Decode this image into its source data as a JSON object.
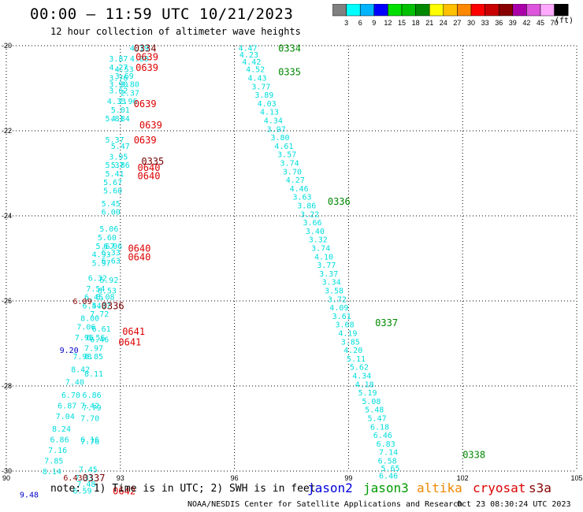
{
  "header": {
    "title": "00:00 – 11:59 UTC 10/21/2023",
    "subtitle": "12 hour collection of altimeter wave heights"
  },
  "colorbar": {
    "unit": "(ft)",
    "colors": [
      "#808080",
      "#00ffff",
      "#00b4ff",
      "#0000ff",
      "#00e000",
      "#00c000",
      "#008800",
      "#ffff00",
      "#ffc000",
      "#ff8800",
      "#ff0000",
      "#c80000",
      "#880000",
      "#aa00aa",
      "#dd55dd",
      "#ffaaff",
      "#000000"
    ],
    "labels": [
      "3",
      "6",
      "9",
      "12",
      "15",
      "18",
      "21",
      "24",
      "27",
      "30",
      "33",
      "36",
      "39",
      "42",
      "45",
      "70"
    ]
  },
  "chart_data": {
    "type": "scatter",
    "title": "12 hour collection of altimeter wave heights",
    "xlabel": "",
    "ylabel": "",
    "xlim": [
      90,
      105
    ],
    "ylim": [
      -30,
      -20
    ],
    "x_ticks": [
      "90",
      "93",
      "96",
      "99",
      "102",
      "105"
    ],
    "y_ticks": [
      "-20",
      "-22",
      "-24",
      "-26",
      "-28",
      "-30"
    ],
    "grid": true,
    "series": [
      {
        "name": "jason3",
        "color": "#00dddd",
        "points": [
          [
            96.35,
            -20.05,
            "4.47"
          ],
          [
            96.38,
            -20.2,
            "4.23"
          ],
          [
            96.45,
            -20.37,
            "4.42"
          ],
          [
            96.55,
            -20.55,
            "4.52"
          ],
          [
            96.6,
            -20.75,
            "4.43"
          ],
          [
            96.7,
            -20.95,
            "3.77"
          ],
          [
            96.78,
            -21.15,
            "3.89"
          ],
          [
            96.85,
            -21.35,
            "4.03"
          ],
          [
            96.92,
            -21.55,
            "4.13"
          ],
          [
            97.02,
            -21.75,
            "4.34"
          ],
          [
            97.1,
            -21.95,
            "3.97"
          ],
          [
            97.2,
            -22.15,
            "3.80"
          ],
          [
            97.3,
            -22.35,
            "4.61"
          ],
          [
            97.38,
            -22.55,
            "3.57"
          ],
          [
            97.45,
            -22.75,
            "3.74"
          ],
          [
            97.52,
            -22.95,
            "3.70"
          ],
          [
            97.6,
            -23.15,
            "4.27"
          ],
          [
            97.7,
            -23.35,
            "4.46"
          ],
          [
            97.78,
            -23.55,
            "3.63"
          ],
          [
            97.9,
            -23.75,
            "3.86"
          ],
          [
            97.98,
            -23.95,
            "3.22"
          ],
          [
            98.05,
            -24.15,
            "3.66"
          ],
          [
            98.12,
            -24.35,
            "3.40"
          ],
          [
            98.2,
            -24.55,
            "3.32"
          ],
          [
            98.27,
            -24.75,
            "3.74"
          ],
          [
            98.35,
            -24.95,
            "4.10"
          ],
          [
            98.42,
            -25.15,
            "3.77"
          ],
          [
            98.48,
            -25.35,
            "3.37"
          ],
          [
            98.55,
            -25.55,
            "3.34"
          ],
          [
            98.62,
            -25.75,
            "3.58"
          ],
          [
            98.7,
            -25.95,
            "3.72"
          ],
          [
            98.75,
            -26.15,
            "4.09"
          ],
          [
            98.82,
            -26.35,
            "3.61"
          ],
          [
            98.9,
            -26.55,
            "3.68"
          ],
          [
            98.98,
            -26.75,
            "4.19"
          ],
          [
            99.05,
            -26.95,
            "3.85"
          ],
          [
            99.12,
            -27.15,
            "4.20"
          ],
          [
            99.2,
            -27.35,
            "5.11"
          ],
          [
            99.28,
            -27.55,
            "5.62"
          ],
          [
            99.35,
            -27.75,
            "4.34"
          ],
          [
            99.42,
            -27.95,
            "4.18"
          ],
          [
            99.5,
            -28.15,
            "5.19"
          ],
          [
            99.6,
            -28.35,
            "5.08"
          ],
          [
            99.68,
            -28.55,
            "5.48"
          ],
          [
            99.75,
            -28.75,
            "5.47"
          ],
          [
            99.82,
            -28.95,
            "6.18"
          ],
          [
            99.9,
            -29.15,
            "6.46"
          ],
          [
            99.98,
            -29.35,
            "6.83"
          ],
          [
            100.05,
            -29.55,
            "7.14"
          ],
          [
            100.02,
            -29.75,
            "6.58"
          ],
          [
            100.1,
            -29.93,
            "5.65"
          ],
          [
            100.05,
            -30.1,
            "6.46"
          ]
        ],
        "time_labels": [
          [
            97.15,
            -20.05,
            "0334"
          ],
          [
            97.15,
            -20.6,
            "0335"
          ],
          [
            98.45,
            -23.65,
            "0336"
          ],
          [
            99.7,
            -26.5,
            "0337"
          ],
          [
            102.0,
            -29.6,
            "0338"
          ]
        ]
      },
      {
        "name": "cryosat",
        "color": "#00dddd",
        "points": [
          [
            93.5,
            -20.05,
            "4.19"
          ],
          [
            92.95,
            -20.3,
            "3.87"
          ],
          [
            93.5,
            -20.3,
            "4.00"
          ],
          [
            92.95,
            -20.5,
            "4.27"
          ],
          [
            93.1,
            -20.55,
            "4.53"
          ],
          [
            92.95,
            -20.75,
            "3.76"
          ],
          [
            93.1,
            -20.7,
            "3.69"
          ],
          [
            93.25,
            -20.9,
            "3.80"
          ],
          [
            92.95,
            -20.9,
            "3.90"
          ],
          [
            93.25,
            -21.1,
            "2.37"
          ],
          [
            92.95,
            -21.05,
            "3.62"
          ],
          [
            92.9,
            -21.3,
            "4.33"
          ],
          [
            93.2,
            -21.3,
            "2.96"
          ],
          [
            93.0,
            -21.5,
            "5.01"
          ],
          [
            92.85,
            -21.7,
            "5.81"
          ],
          [
            93.0,
            -21.7,
            "4.84"
          ],
          [
            92.85,
            -22.2,
            "5.37"
          ],
          [
            93.0,
            -22.35,
            "5.47"
          ],
          [
            92.95,
            -22.6,
            "3.95"
          ],
          [
            92.85,
            -22.8,
            "5.37"
          ],
          [
            93.0,
            -22.8,
            "5.86"
          ],
          [
            92.85,
            -23.0,
            "5.41"
          ],
          [
            92.8,
            -23.2,
            "5.67"
          ],
          [
            92.8,
            -23.4,
            "5.60"
          ],
          [
            92.75,
            -23.7,
            "5.45"
          ],
          [
            92.75,
            -23.9,
            "6.00"
          ],
          [
            92.7,
            -24.3,
            "5.06"
          ],
          [
            92.65,
            -24.5,
            "5.60"
          ],
          [
            92.6,
            -24.7,
            "5.67"
          ],
          [
            92.8,
            -24.7,
            "6.06"
          ],
          [
            92.5,
            -24.9,
            "4.93"
          ],
          [
            92.75,
            -24.85,
            "6.33"
          ],
          [
            92.5,
            -25.1,
            "5.97"
          ],
          [
            92.75,
            -25.05,
            "6.63"
          ],
          [
            92.4,
            -25.45,
            "6.32"
          ],
          [
            92.7,
            -25.5,
            "6.92"
          ],
          [
            92.35,
            -25.7,
            "7.54"
          ],
          [
            92.65,
            -25.75,
            "6.53"
          ],
          [
            92.3,
            -25.9,
            "6.45"
          ],
          [
            92.6,
            -25.9,
            "6.08"
          ],
          [
            92.25,
            -26.1,
            "6.44"
          ],
          [
            92.5,
            -26.1,
            "5.37"
          ],
          [
            92.45,
            -26.3,
            "7.72"
          ],
          [
            92.2,
            -26.4,
            "8.00"
          ],
          [
            92.1,
            -26.6,
            "7.06"
          ],
          [
            92.5,
            -26.65,
            "6.61"
          ],
          [
            92.05,
            -26.85,
            "7.95"
          ],
          [
            92.35,
            -26.85,
            "6.56"
          ],
          [
            92.45,
            -26.9,
            "6.46"
          ],
          [
            92.3,
            -27.1,
            "7.97"
          ],
          [
            92.3,
            -27.3,
            "6.85"
          ],
          [
            92.0,
            -27.3,
            "7.98"
          ],
          [
            92.3,
            -27.7,
            "8.11"
          ],
          [
            91.95,
            -27.6,
            "8.42"
          ],
          [
            91.8,
            -27.9,
            "7.40"
          ],
          [
            91.7,
            -28.2,
            "6.70"
          ],
          [
            92.25,
            -28.2,
            "6.86"
          ],
          [
            91.6,
            -28.45,
            "6.87"
          ],
          [
            92.2,
            -28.45,
            "7.42"
          ],
          [
            92.25,
            -28.5,
            "7.79"
          ],
          [
            91.55,
            -28.7,
            "7.04"
          ],
          [
            92.2,
            -28.75,
            "7.70"
          ],
          [
            91.45,
            -29.0,
            "8.24"
          ],
          [
            91.4,
            -29.25,
            "6.86"
          ],
          [
            92.2,
            -29.25,
            "6.16"
          ],
          [
            92.2,
            -29.3,
            "7.76"
          ],
          [
            91.35,
            -29.5,
            "7.16"
          ],
          [
            91.25,
            -29.75,
            "7.85"
          ],
          [
            91.2,
            -30.0,
            "8.14"
          ],
          [
            92.15,
            -29.95,
            "7.45"
          ],
          [
            92.05,
            -30.15,
            "7.31"
          ],
          [
            92.1,
            -30.3,
            "7.48"
          ],
          [
            92.0,
            -30.45,
            "6.59"
          ]
        ],
        "time_labels": [
          [
            93.35,
            -21.35,
            "0639"
          ],
          [
            93.4,
            -20.25,
            "0639"
          ],
          [
            93.4,
            -20.5,
            "0639"
          ],
          [
            93.5,
            -21.85,
            "0639"
          ],
          [
            93.35,
            -22.2,
            "0639"
          ],
          [
            93.45,
            -22.85,
            "0640"
          ],
          [
            93.45,
            -23.05,
            "0640"
          ],
          [
            93.2,
            -24.75,
            "0640"
          ],
          [
            93.2,
            -24.95,
            "0640"
          ],
          [
            93.05,
            -26.7,
            "0641"
          ],
          [
            92.95,
            -26.95,
            "0641"
          ],
          [
            92.8,
            -30.45,
            "0642"
          ]
        ]
      },
      {
        "name": "s3a",
        "color": "#880000",
        "points": [
          [
            92.0,
            -26.0,
            "6.09"
          ],
          [
            91.75,
            -30.15,
            "6.43"
          ]
        ],
        "time_labels": [
          [
            93.35,
            -20.05,
            "0334"
          ],
          [
            93.55,
            -22.7,
            "0335"
          ],
          [
            92.5,
            -26.1,
            "0336"
          ],
          [
            92.0,
            -30.15,
            "0337"
          ]
        ]
      },
      {
        "name": "jason2",
        "color": "#0000cc",
        "points": [
          [
            91.65,
            -27.15,
            "9.20"
          ],
          [
            90.6,
            -30.55,
            "9.48"
          ]
        ],
        "time_labels": []
      },
      {
        "name": "altika",
        "color": "#ee8800",
        "points": [],
        "time_labels": []
      }
    ]
  },
  "footer": {
    "note": "note:  1) Time is in UTC; 2) SWH is in feet",
    "credit": "NOAA/NESDIS Center for Satellite Applications and Research",
    "timestamp": "Oct 23 08:30:24 UTC 2023"
  },
  "legend": [
    {
      "label": "jason2",
      "color": "#0000dd"
    },
    {
      "label": "jason3",
      "color": "#009900"
    },
    {
      "label": "altika",
      "color": "#ee8800"
    },
    {
      "label": "cryosat",
      "color": "#dd0000"
    },
    {
      "label": "s3a",
      "color": "#880000"
    }
  ]
}
